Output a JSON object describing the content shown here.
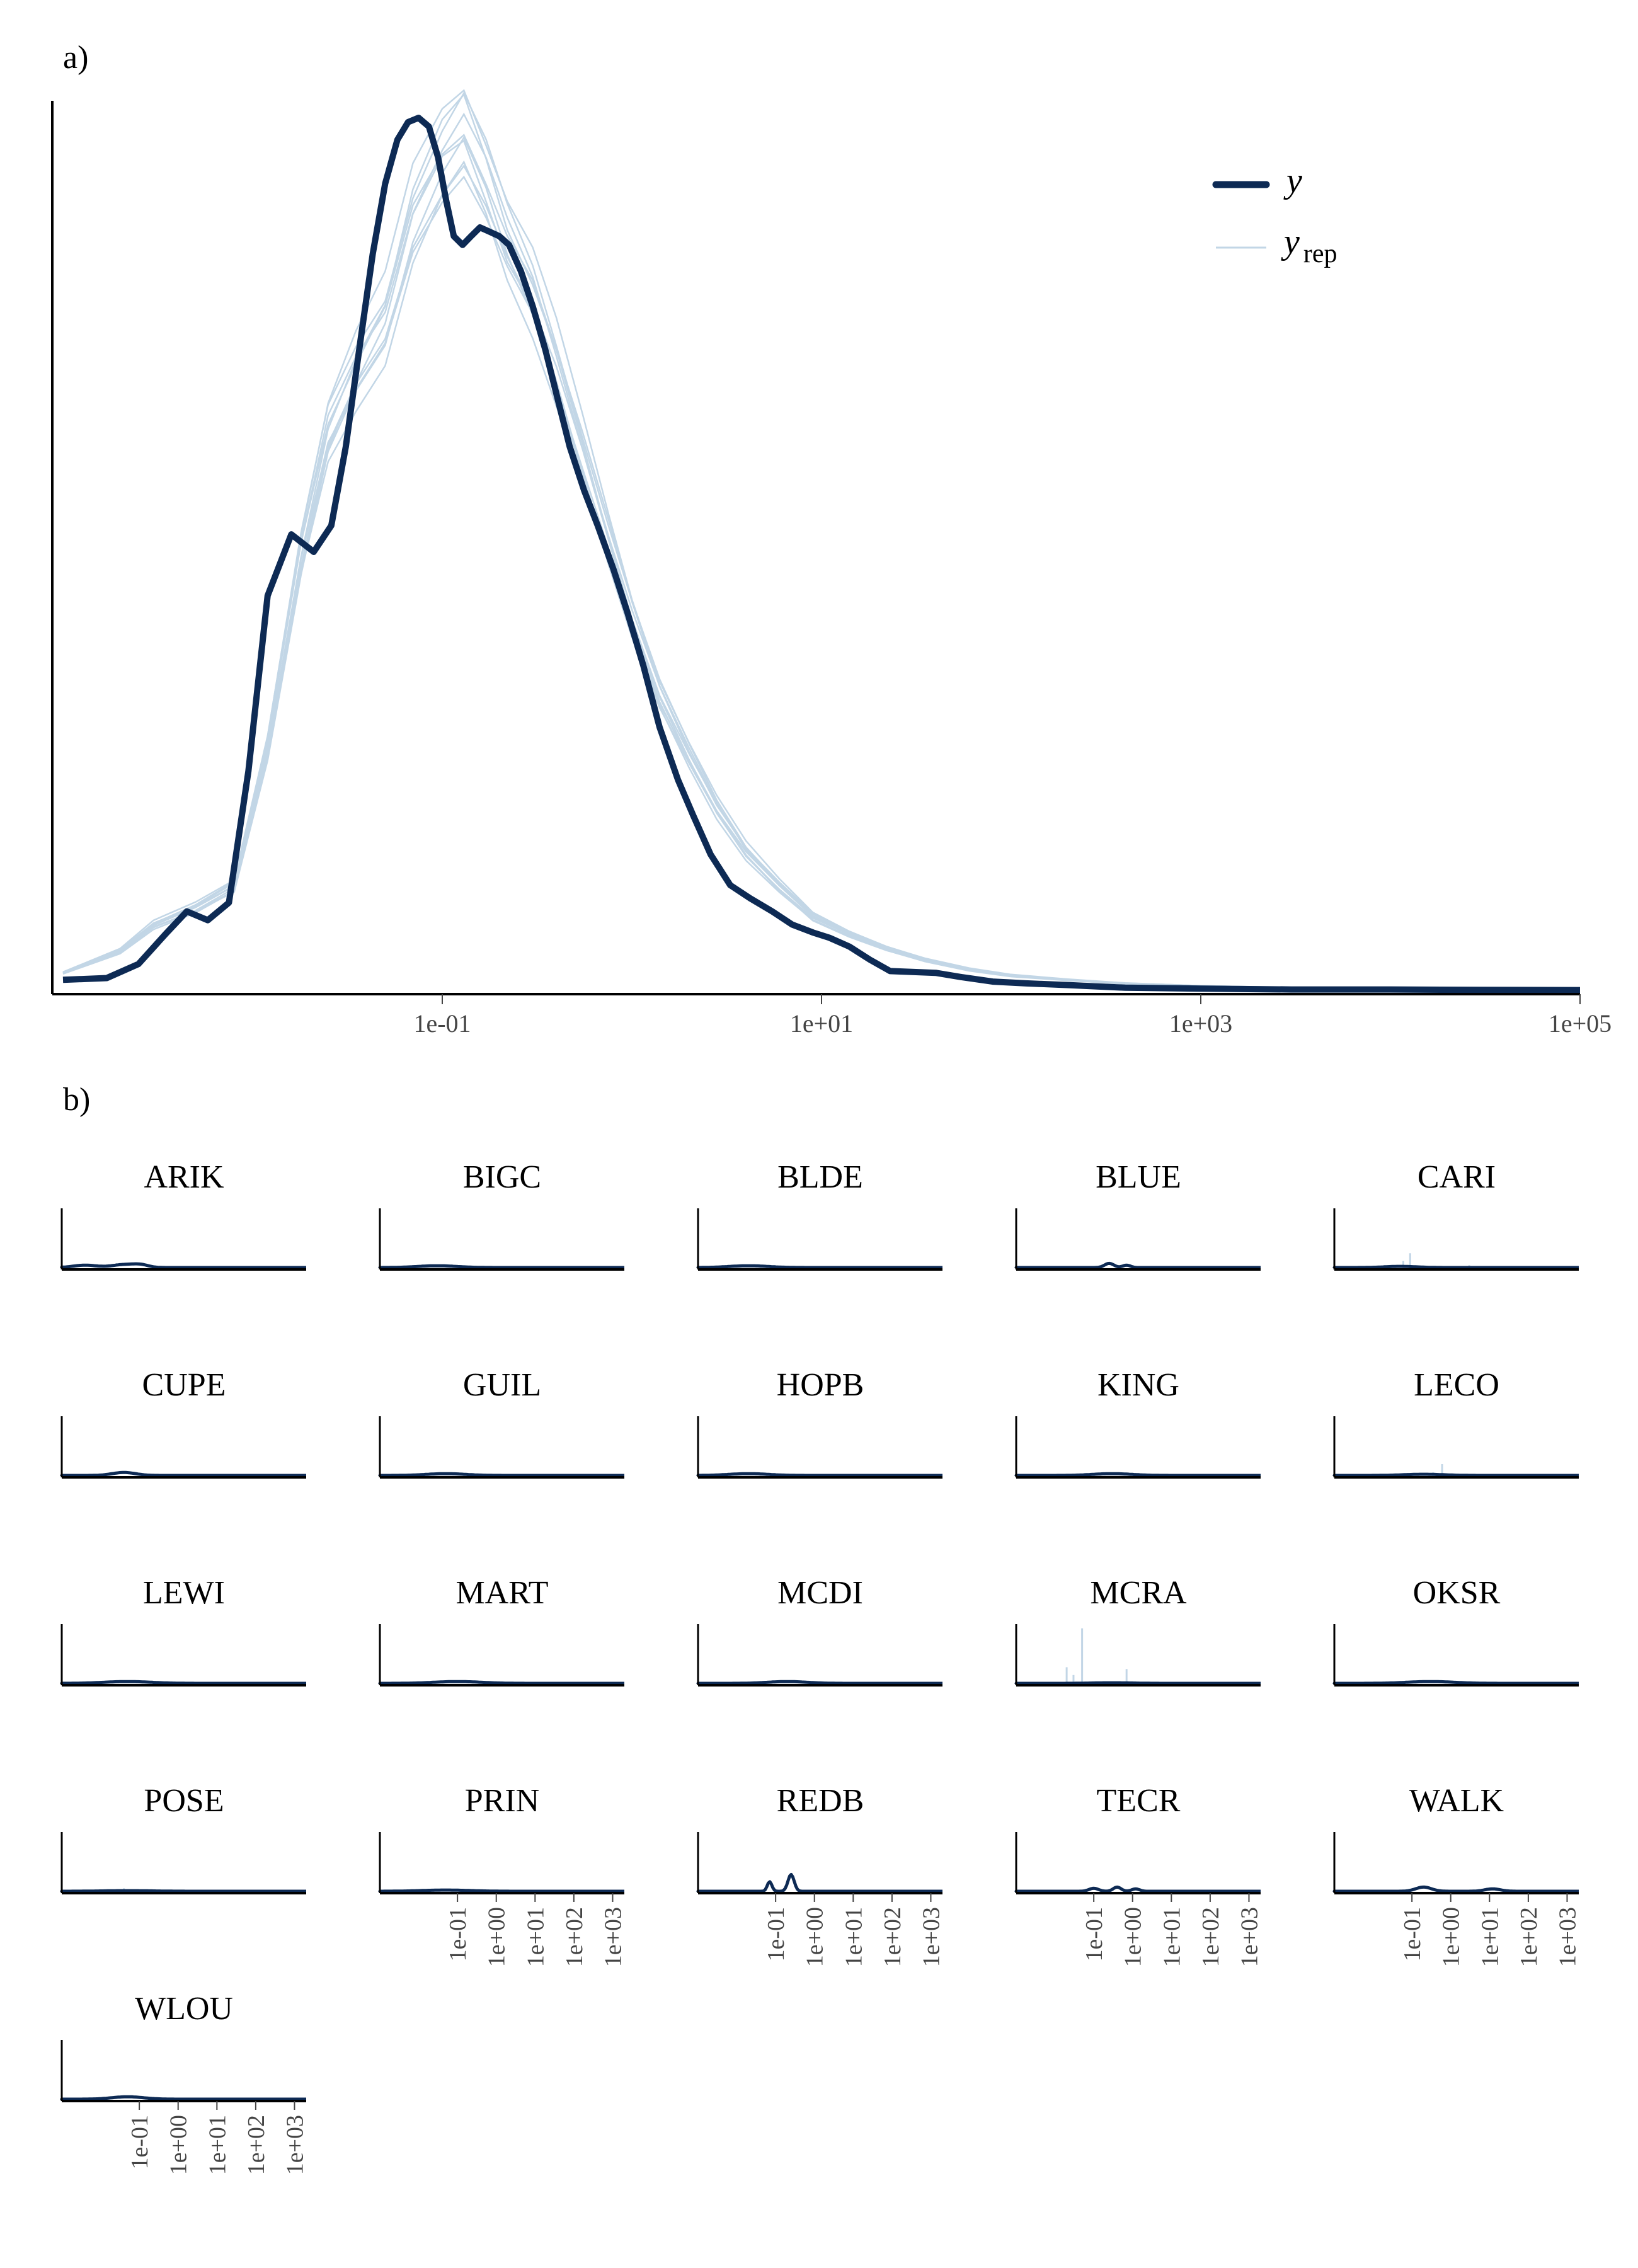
{
  "panel_a_label": "a)",
  "panel_b_label": "b)",
  "legend": {
    "y_label": "y",
    "yrep_base": "y",
    "yrep_sub": "rep"
  },
  "colors": {
    "y": "#0d2a54",
    "yrep": "#c2d6e6"
  },
  "chart_data": [
    {
      "type": "line",
      "panel": "a",
      "x_scale": "log10",
      "xlim": [
        0.001,
        100000
      ],
      "ylim": [
        0,
        1.0
      ],
      "x_ticks": [
        0.1,
        10,
        1000,
        100000
      ],
      "x_tick_labels": [
        "1e-01",
        "1e+01",
        "1e+03",
        "1e+05"
      ],
      "grid": false,
      "legend_position": "top-right",
      "series": [
        {
          "name": "y",
          "x": [
            0.001,
            0.0017,
            0.0025,
            0.0035,
            0.0045,
            0.0058,
            0.0075,
            0.0095,
            0.012,
            0.016,
            0.021,
            0.026,
            0.031,
            0.037,
            0.043,
            0.05,
            0.058,
            0.066,
            0.075,
            0.085,
            0.095,
            0.105,
            0.115,
            0.128,
            0.142,
            0.158,
            0.178,
            0.2,
            0.225,
            0.26,
            0.3,
            0.35,
            0.4,
            0.47,
            0.56,
            0.66,
            0.8,
            0.95,
            1.15,
            1.4,
            1.75,
            2.1,
            2.6,
            3.3,
            4.2,
            5.5,
            7,
            9,
            11,
            14,
            18,
            23,
            30,
            40,
            55,
            80,
            120,
            200,
            400,
            1000,
            3000,
            10000,
            30000,
            100000
          ],
          "values": [
            0.012,
            0.014,
            0.03,
            0.065,
            0.09,
            0.08,
            0.1,
            0.25,
            0.45,
            0.52,
            0.5,
            0.53,
            0.62,
            0.74,
            0.84,
            0.92,
            0.97,
            0.99,
            0.995,
            0.985,
            0.95,
            0.9,
            0.86,
            0.85,
            0.86,
            0.87,
            0.865,
            0.86,
            0.85,
            0.82,
            0.78,
            0.73,
            0.68,
            0.62,
            0.57,
            0.53,
            0.48,
            0.43,
            0.37,
            0.3,
            0.24,
            0.2,
            0.155,
            0.12,
            0.105,
            0.09,
            0.075,
            0.066,
            0.06,
            0.05,
            0.035,
            0.022,
            0.021,
            0.02,
            0.015,
            0.01,
            0.008,
            0.006,
            0.003,
            0.002,
            0.001,
            0.001,
            0.0005,
            0.0003
          ]
        },
        {
          "name": "y_rep",
          "x": [
            0.001,
            0.002,
            0.003,
            0.005,
            0.008,
            0.012,
            0.018,
            0.025,
            0.035,
            0.05,
            0.07,
            0.1,
            0.13,
            0.17,
            0.22,
            0.3,
            0.4,
            0.55,
            0.75,
            1.0,
            1.4,
            2.0,
            2.8,
            4.0,
            6,
            9,
            14,
            22,
            35,
            60,
            100,
            200,
            400,
            1000,
            3000,
            10000,
            100000
          ],
          "values": [
            0.02,
            0.045,
            0.075,
            0.095,
            0.12,
            0.28,
            0.5,
            0.64,
            0.71,
            0.77,
            0.89,
            0.96,
            0.99,
            0.93,
            0.86,
            0.8,
            0.72,
            0.62,
            0.52,
            0.43,
            0.34,
            0.27,
            0.21,
            0.16,
            0.12,
            0.085,
            0.065,
            0.048,
            0.035,
            0.024,
            0.017,
            0.012,
            0.008,
            0.005,
            0.003,
            0.001,
            0.0004
          ]
        }
      ]
    },
    {
      "type": "line",
      "panel": "b",
      "x_scale": "log10",
      "xlim": [
        0.001,
        2000
      ],
      "x_ticks": [
        0.1,
        1,
        10,
        100,
        1000
      ],
      "x_tick_labels": [
        "1e-01",
        "1e+00",
        "1e+01",
        "1e+02",
        "1e+03"
      ],
      "facets": [
        {
          "title": "ARIK",
          "y": [
            {
              "x": 0.004,
              "h": 0.04,
              "w": 0.3
            },
            {
              "x": 0.04,
              "h": 0.05,
              "w": 0.3
            },
            {
              "x": 0.11,
              "h": 0.04,
              "w": 0.2
            }
          ],
          "yrep": [],
          "x_ticks_shown": false
        },
        {
          "title": "BIGC",
          "y": [
            {
              "x": 0.03,
              "h": 0.03,
              "w": 0.5
            }
          ],
          "yrep": [],
          "x_ticks_shown": false
        },
        {
          "title": "BLDE",
          "y": [
            {
              "x": 0.02,
              "h": 0.03,
              "w": 0.5
            }
          ],
          "yrep": [],
          "x_ticks_shown": false
        },
        {
          "title": "BLUE",
          "y": [
            {
              "x": 0.25,
              "h": 0.07,
              "w": 0.12
            },
            {
              "x": 0.7,
              "h": 0.04,
              "w": 0.1
            }
          ],
          "yrep": [],
          "x_ticks_shown": false
        },
        {
          "title": "CARI",
          "y": [
            {
              "x": 0.05,
              "h": 0.02,
              "w": 0.4
            }
          ],
          "yrep": [
            {
              "x": 0.09,
              "h": 0.25
            },
            {
              "x": 0.06,
              "h": 0.12
            },
            {
              "x": 3.0,
              "h": 0.05
            }
          ],
          "x_ticks_shown": false
        },
        {
          "title": "CUPE",
          "y": [
            {
              "x": 0.04,
              "h": 0.05,
              "w": 0.3
            }
          ],
          "yrep": [],
          "x_ticks_shown": false
        },
        {
          "title": "GUIL",
          "y": [
            {
              "x": 0.05,
              "h": 0.03,
              "w": 0.5
            }
          ],
          "yrep": [],
          "x_ticks_shown": false
        },
        {
          "title": "HOPB",
          "y": [
            {
              "x": 0.02,
              "h": 0.03,
              "w": 0.5
            }
          ],
          "yrep": [],
          "x_ticks_shown": false
        },
        {
          "title": "KING",
          "y": [
            {
              "x": 0.3,
              "h": 0.03,
              "w": 0.5
            }
          ],
          "yrep": [],
          "x_ticks_shown": false
        },
        {
          "title": "LECO",
          "y": [
            {
              "x": 0.2,
              "h": 0.02,
              "w": 0.5
            }
          ],
          "yrep": [
            {
              "x": 0.6,
              "h": 0.2
            },
            {
              "x": 0.35,
              "h": 0.06
            }
          ],
          "x_ticks_shown": false
        },
        {
          "title": "LEWI",
          "y": [
            {
              "x": 0.05,
              "h": 0.03,
              "w": 0.6
            }
          ],
          "yrep": [],
          "x_ticks_shown": false
        },
        {
          "title": "MART",
          "y": [
            {
              "x": 0.1,
              "h": 0.03,
              "w": 0.6
            }
          ],
          "yrep": [],
          "x_ticks_shown": false
        },
        {
          "title": "MCDI",
          "y": [
            {
              "x": 0.2,
              "h": 0.03,
              "w": 0.5
            }
          ],
          "yrep": [],
          "x_ticks_shown": false
        },
        {
          "title": "MCRA",
          "y": [
            {
              "x": 0.3,
              "h": 0.01,
              "w": 0.5
            }
          ],
          "yrep": [
            {
              "x": 0.02,
              "h": 0.28
            },
            {
              "x": 0.05,
              "h": 0.93
            },
            {
              "x": 0.7,
              "h": 0.25
            },
            {
              "x": 0.03,
              "h": 0.15
            }
          ],
          "x_ticks_shown": false
        },
        {
          "title": "OKSR",
          "y": [
            {
              "x": 0.3,
              "h": 0.03,
              "w": 0.6
            }
          ],
          "yrep": [],
          "x_ticks_shown": false
        },
        {
          "title": "POSE",
          "y": [
            {
              "x": 0.05,
              "h": 0.01,
              "w": 0.6
            }
          ],
          "yrep": [
            {
              "x": 0.04,
              "h": 0.06
            }
          ],
          "x_ticks_shown": false
        },
        {
          "title": "PRIN",
          "y": [
            {
              "x": 0.05,
              "h": 0.02,
              "w": 0.6
            }
          ],
          "yrep": [],
          "x_ticks_shown": true
        },
        {
          "title": "REDB",
          "y": [
            {
              "x": 0.07,
              "h": 0.16,
              "w": 0.06
            },
            {
              "x": 0.25,
              "h": 0.28,
              "w": 0.08
            }
          ],
          "yrep": [],
          "x_ticks_shown": true
        },
        {
          "title": "TECR",
          "y": [
            {
              "x": 0.1,
              "h": 0.05,
              "w": 0.12
            },
            {
              "x": 0.4,
              "h": 0.07,
              "w": 0.1
            },
            {
              "x": 1.2,
              "h": 0.04,
              "w": 0.1
            }
          ],
          "yrep": [],
          "x_ticks_shown": true
        },
        {
          "title": "WALK",
          "y": [
            {
              "x": 0.2,
              "h": 0.07,
              "w": 0.2
            },
            {
              "x": 12,
              "h": 0.04,
              "w": 0.2
            }
          ],
          "yrep": [],
          "x_ticks_shown": true
        },
        {
          "title": "WLOU",
          "y": [
            {
              "x": 0.05,
              "h": 0.04,
              "w": 0.4
            }
          ],
          "yrep": [],
          "x_ticks_shown": true
        }
      ]
    }
  ]
}
